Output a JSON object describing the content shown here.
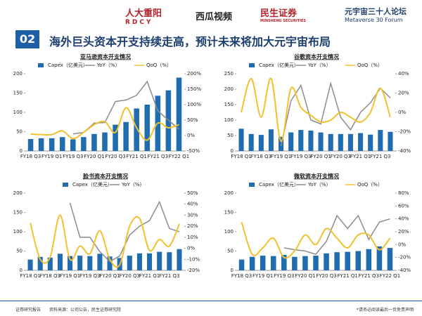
{
  "header": {
    "logo1": "人大重阳",
    "logo1_sub": "RDCY",
    "logo2": "西瓜视频",
    "logo3": "民生证券",
    "logo3_sub": "MINSHENG SECURITIES",
    "logo4": "元宇宙三十人论坛",
    "logo4_sub": "Metaverse 30 Forum"
  },
  "section_number": "02",
  "title": "海外巨头资本开支持续走高，预计未来将加大元宇宙布局",
  "footer": {
    "left": "证券研究报告",
    "source": "资料来源：公司公告，民生证券研究院",
    "right": "*请务必阅读最后一页免责声明"
  },
  "chart_data": [
    {
      "type": "bar",
      "title": "亚马逊资本开支情况",
      "categories": [
        "FY18 Q3",
        null,
        "FY19 Q1",
        null,
        "FY19 Q3",
        null,
        "FY20 Q1",
        null,
        "FY20 Q3",
        null,
        "FY21 Q1",
        null,
        "FY21 Q3",
        null,
        "FY22 Q1"
      ],
      "series": [
        {
          "name": "Capex（亿美元）",
          "color": "#1f6cb0",
          "values": [
            31,
            33,
            33,
            36,
            30,
            36,
            44,
            48,
            68,
            75,
            110,
            120,
            143,
            157,
            190
          ]
        },
        {
          "name": "YoY（%）",
          "color": "#8c8c8c",
          "axis": "y2",
          "values": [
            null,
            null,
            null,
            null,
            5,
            10,
            40,
            42,
            110,
            115,
            130,
            175,
            80,
            50,
            20
          ]
        },
        {
          "name": "QoQ（%）",
          "color": "#f2c12e",
          "axis": "y2",
          "values": [
            5,
            3,
            3,
            15,
            -10,
            10,
            35,
            45,
            10,
            90,
            25,
            -15,
            40,
            25,
            35
          ]
        }
      ],
      "ylim": [
        0,
        200
      ],
      "yticks": [
        0,
        50,
        100,
        150,
        200
      ],
      "y2lim": [
        -50,
        200
      ],
      "y2ticks": [
        {
          "value": -50,
          "label": "-50%"
        },
        {
          "value": 0,
          "label": "0%"
        },
        {
          "value": 50,
          "label": "50%"
        },
        {
          "value": 100,
          "label": "100%"
        },
        {
          "value": 150,
          "label": "150%"
        },
        {
          "value": 200,
          "label": "200%"
        }
      ]
    },
    {
      "type": "bar",
      "title": "谷歌资本开支情况",
      "categories": [
        "FY18 Q1",
        null,
        "FY18 Q3",
        null,
        "FY19 Q1",
        null,
        "FY19 Q3",
        null,
        "FY20 Q1",
        null,
        "FY20 Q3",
        null,
        "FY21 Q1",
        null,
        "FY21 Q3",
        null
      ],
      "series": [
        {
          "name": "Capex（亿美元）",
          "color": "#1f6cb0",
          "values": [
            72,
            55,
            52,
            70,
            46,
            60,
            68,
            66,
            60,
            55,
            55,
            55,
            58,
            53,
            68,
            62
          ]
        },
        {
          "name": "YoY（%）",
          "color": "#8c8c8c",
          "axis": "y2",
          "values": [
            null,
            null,
            null,
            null,
            -35,
            12,
            28,
            -8,
            -12,
            30,
            -5,
            -18,
            0,
            10,
            25,
            15
          ]
        },
        {
          "name": "QoQ（%）",
          "color": "#f2c12e",
          "axis": "y2",
          "values": [
            0,
            35,
            -5,
            35,
            -30,
            25,
            5,
            -3,
            -10,
            -8,
            0,
            -5,
            -10,
            0,
            25,
            -5
          ]
        }
      ],
      "ylim": [
        0,
        250
      ],
      "yticks": [
        0,
        50,
        100,
        150,
        200,
        250
      ],
      "y2lim": [
        -40,
        40
      ],
      "y2ticks": [
        {
          "value": -40,
          "label": "-40%"
        },
        {
          "value": -20,
          "label": "-20%"
        },
        {
          "value": 0,
          "label": "0%"
        },
        {
          "value": 20,
          "label": "20%"
        },
        {
          "value": 40,
          "label": "40%"
        }
      ]
    },
    {
      "type": "bar",
      "title": "脸书资本开支情况",
      "categories": [
        "FY18 Q1",
        null,
        "FY18 Q3",
        null,
        "FY19 Q1",
        null,
        "FY19 Q3",
        null,
        "FY20 Q1",
        null,
        "FY20 Q3",
        null,
        "FY21 Q1",
        null,
        "FY21 Q3",
        null
      ],
      "series": [
        {
          "name": "Capex（亿美元）",
          "color": "#1f6cb0",
          "values": [
            28,
            35,
            33,
            43,
            37,
            38,
            37,
            43,
            36,
            32,
            38,
            44,
            44,
            48,
            47,
            55
          ]
        },
        {
          "name": "YoY（%）",
          "color": "#8c8c8c",
          "axis": "y2",
          "values": [
            null,
            null,
            null,
            null,
            41,
            10,
            10,
            -3,
            -12,
            -7,
            12,
            20,
            25,
            42,
            18,
            15
          ]
        },
        {
          "color": "#f2c12e",
          "axis": "y2",
          "values": [
            23,
            -10,
            -8,
            30,
            -10,
            2,
            -5,
            16,
            -10,
            -15,
            20,
            27,
            -2,
            8,
            2,
            22
          ]
        }
      ],
      "ylim": [
        0,
        200
      ],
      "yticks": [
        0,
        50,
        100,
        150,
        200
      ],
      "y2lim": [
        -20,
        50
      ],
      "y2ticks": [
        {
          "value": -20,
          "label": "-20%"
        },
        {
          "value": -10,
          "label": "-10%"
        },
        {
          "value": 0,
          "label": "0%"
        },
        {
          "value": 10,
          "label": "10%"
        },
        {
          "value": 20,
          "label": "20%"
        },
        {
          "value": 30,
          "label": "30%"
        },
        {
          "value": 40,
          "label": "40%"
        },
        {
          "value": 50,
          "label": "50%"
        }
      ]
    },
    {
      "type": "bar",
      "title": "微软资本开支情况",
      "categories": [
        "FY18 Q3",
        null,
        "FY19 Q1",
        null,
        "FY19 Q3",
        null,
        "FY20 Q1",
        null,
        "FY20 Q3",
        null,
        "FY21 Q1",
        null,
        "FY21 Q3",
        null,
        "FY22 Q1"
      ],
      "series": [
        {
          "name": "Capex（亿美元）",
          "color": "#1f6cb0",
          "values": [
            28,
            35,
            38,
            37,
            40,
            35,
            37,
            38,
            44,
            47,
            48,
            50,
            55,
            62,
            58
          ]
        },
        {
          "name": "YoY（%）",
          "color": "#8c8c8c",
          "axis": "y2",
          "values": [
            null,
            null,
            null,
            null,
            -5,
            -8,
            -10,
            -15,
            5,
            45,
            25,
            45,
            8,
            35,
            40
          ]
        },
        {
          "name": "QoQ（%）",
          "color": "#f2c12e",
          "axis": "y2",
          "values": [
            35,
            -15,
            -5,
            10,
            -20,
            -10,
            15,
            0,
            25,
            10,
            -5,
            15,
            15,
            -8,
            10
          ]
        }
      ],
      "ylim": [
        0,
        200
      ],
      "yticks": [
        0,
        50,
        100,
        150,
        200
      ],
      "y2lim": [
        -40,
        80
      ],
      "y2ticks": [
        {
          "value": -40,
          "label": "-40%"
        },
        {
          "value": -20,
          "label": "-20%"
        },
        {
          "value": 0,
          "label": "0%"
        },
        {
          "value": 20,
          "label": "20%"
        },
        {
          "value": 40,
          "label": "40%"
        },
        {
          "value": 60,
          "label": "60%"
        },
        {
          "value": 80,
          "label": "80%"
        }
      ]
    }
  ]
}
